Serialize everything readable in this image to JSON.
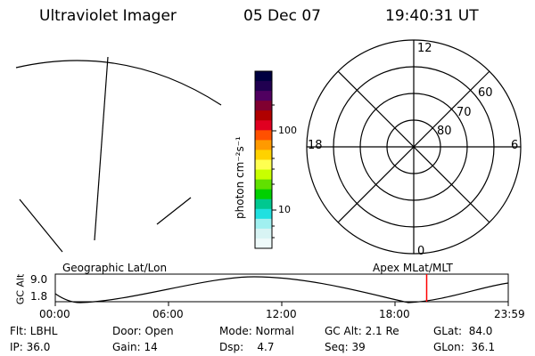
{
  "header": {
    "title": "Ultraviolet Imager",
    "date": "05 Dec 07",
    "time": "19:40:31 UT"
  },
  "colorbar": {
    "label": "photon cm⁻²s⁻¹",
    "ticks": [
      "100",
      "10"
    ],
    "colors": [
      "#000040",
      "#200050",
      "#500060",
      "#800030",
      "#b00000",
      "#e00020",
      "#ff5000",
      "#ff9a00",
      "#ffd200",
      "#ffff50",
      "#c8ff00",
      "#60e000",
      "#00d000",
      "#00c890",
      "#20e0e0",
      "#a0f0f0",
      "#d8f4f4",
      "#eefafa"
    ]
  },
  "polar_plot": {
    "mlt_labels": {
      "top": "12",
      "right": "6",
      "bottom": "0",
      "left": "18"
    },
    "lat_labels": [
      "60",
      "70",
      "80"
    ]
  },
  "timeline": {
    "left_label": "Geographic Lat/Lon",
    "right_label": "Apex MLat/MLT",
    "axis_label": "GC Alt",
    "y_ticks": [
      "9.0",
      "1.8"
    ],
    "x_ticks": [
      "00:00",
      "06:00",
      "12:00",
      "18:00",
      "23:59"
    ],
    "marker_color": "#ff0000",
    "current_time_fraction": 0.8198
  },
  "status": {
    "filter": "Flt: LBHL",
    "ip": "IP: 36.0",
    "door": "Door: Open",
    "gain": "Gain: 14",
    "mode": "Mode: Normal",
    "dsp": "Dsp:    4.7",
    "gc_alt": "GC Alt: 2.1 Re",
    "seq": "Seq: 39",
    "glat": "GLat:  84.0",
    "glon": "GLon:  36.1"
  }
}
